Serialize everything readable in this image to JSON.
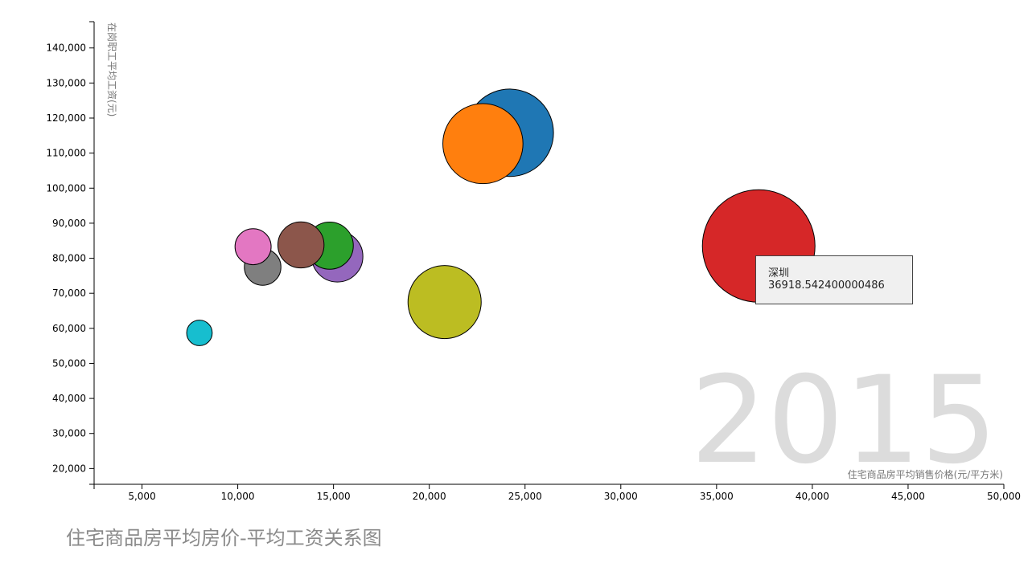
{
  "title": "住宅商品房平均房价-平均工资关系图",
  "year_label": "2015",
  "tooltip": {
    "city": "深圳",
    "value": "36918.542400000486"
  },
  "chart_data": {
    "type": "scatter",
    "title": "住宅商品房平均房价-平均工资关系图",
    "xlabel": "住宅商品房平均销售价格(元/平方米)",
    "ylabel": "在岗职工平均工资(元)",
    "xlim": [
      2500,
      50000
    ],
    "ylim": [
      15500,
      147500
    ],
    "x_ticks": [
      5000,
      10000,
      15000,
      20000,
      25000,
      30000,
      35000,
      40000,
      45000,
      50000
    ],
    "y_ticks": [
      20000,
      30000,
      40000,
      50000,
      60000,
      70000,
      80000,
      90000,
      100000,
      110000,
      120000,
      130000,
      140000
    ],
    "year": "2015",
    "points": [
      {
        "x": 37200,
        "y": 83500,
        "size": 36918.5424,
        "color": "#d62728"
      },
      {
        "x": 24200,
        "y": 115800,
        "size": 22300,
        "color": "#1f77b4"
      },
      {
        "x": 22800,
        "y": 112700,
        "size": 18700,
        "color": "#ff7f0e"
      },
      {
        "x": 20800,
        "y": 67500,
        "size": 15600,
        "color": "#bcbd22"
      },
      {
        "x": 15200,
        "y": 80500,
        "size": 7600,
        "color": "#9467bd"
      },
      {
        "x": 14800,
        "y": 83600,
        "size": 6500,
        "color": "#2ca02c"
      },
      {
        "x": 13300,
        "y": 83800,
        "size": 6200,
        "color": "#8c564b"
      },
      {
        "x": 11300,
        "y": 77500,
        "size": 3900,
        "color": "#7f7f7f"
      },
      {
        "x": 10800,
        "y": 83300,
        "size": 3800,
        "color": "#e377c2"
      },
      {
        "x": 8000,
        "y": 58700,
        "size": 1900,
        "color": "#17becf"
      }
    ]
  }
}
